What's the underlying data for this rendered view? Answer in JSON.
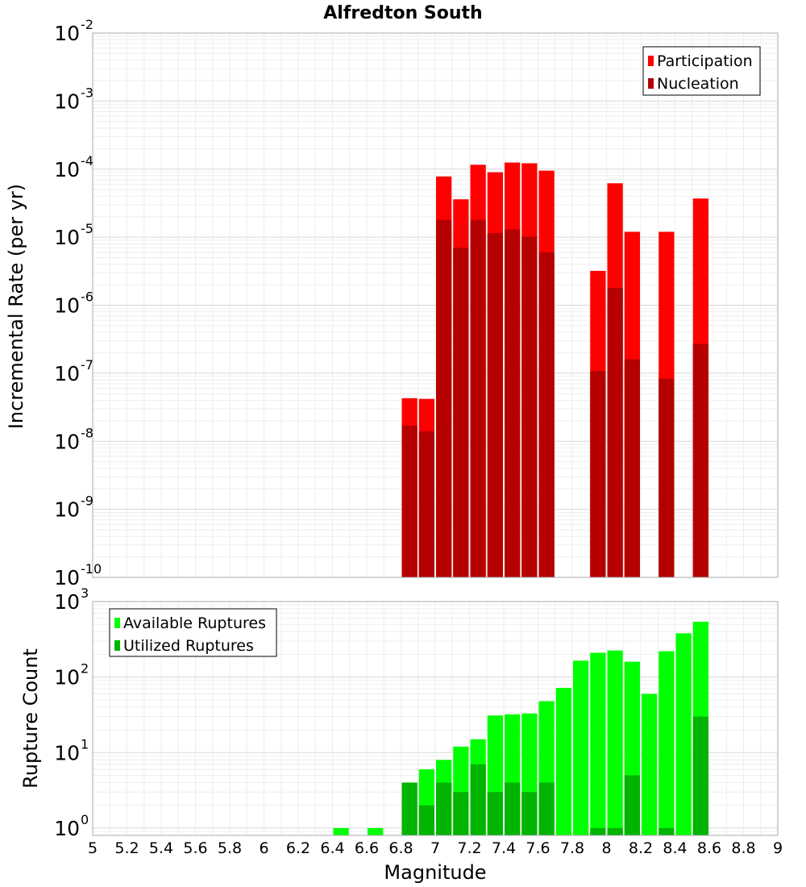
{
  "chart_data": [
    {
      "type": "bar",
      "title": "Alfredton South",
      "ylabel": "Incremental Rate (per yr)",
      "yscale": "log",
      "ylim": [
        1e-10,
        0.01
      ],
      "xlim": [
        5,
        9
      ],
      "x_ticks": [
        "5",
        "5.2",
        "5.4",
        "5.6",
        "5.8",
        "6",
        "6.2",
        "6.4",
        "6.6",
        "6.8",
        "7",
        "7.2",
        "7.4",
        "7.6",
        "7.8",
        "8",
        "8.2",
        "8.4",
        "8.6",
        "8.8",
        "9"
      ],
      "y_ticks": [
        {
          "base": "10",
          "exp": "-10"
        },
        {
          "base": "10",
          "exp": "-9"
        },
        {
          "base": "10",
          "exp": "-8"
        },
        {
          "base": "10",
          "exp": "-7"
        },
        {
          "base": "10",
          "exp": "-6"
        },
        {
          "base": "10",
          "exp": "-5"
        },
        {
          "base": "10",
          "exp": "-4"
        },
        {
          "base": "10",
          "exp": "-3"
        },
        {
          "base": "10",
          "exp": "-2"
        }
      ],
      "grid": true,
      "legend_position": "top-right",
      "series": [
        {
          "name": "Participation",
          "color": "#ff0000",
          "x": [
            6.85,
            6.95,
            7.05,
            7.15,
            7.25,
            7.35,
            7.45,
            7.55,
            7.65,
            7.95,
            8.05,
            8.15,
            8.35,
            8.55
          ],
          "values": [
            4.3e-08,
            4.2e-08,
            7.8e-05,
            3.6e-05,
            0.000116,
            9e-05,
            0.000125,
            0.000122,
            9.5e-05,
            3.2e-06,
            6.2e-05,
            1.2e-05,
            1.2e-05,
            3.7e-05
          ]
        },
        {
          "name": "Nucleation",
          "color": "#b40000",
          "x": [
            6.85,
            6.95,
            7.05,
            7.15,
            7.25,
            7.35,
            7.45,
            7.55,
            7.65,
            7.95,
            8.05,
            8.15,
            8.35,
            8.55
          ],
          "values": [
            1.7e-08,
            1.4e-08,
            1.8e-05,
            7e-06,
            1.8e-05,
            1.15e-05,
            1.3e-05,
            1.02e-05,
            6e-06,
            1.08e-07,
            1.8e-06,
            1.6e-07,
            8.3e-08,
            2.7e-07
          ]
        }
      ]
    },
    {
      "type": "bar",
      "xlabel": "Magnitude",
      "ylabel": "Rupture Count",
      "yscale": "log",
      "ylim": [
        0.8,
        1000
      ],
      "xlim": [
        5,
        9
      ],
      "y_ticks": [
        {
          "base": "10",
          "exp": "0",
          "value": 1
        },
        {
          "base": "10",
          "exp": "1",
          "value": 10
        },
        {
          "base": "10",
          "exp": "2",
          "value": 100
        },
        {
          "base": "10",
          "exp": "3",
          "value": 1000
        }
      ],
      "grid": true,
      "legend_position": "top-left",
      "series": [
        {
          "name": "Available Ruptures",
          "color": "#00ff00",
          "x": [
            6.45,
            6.65,
            6.85,
            6.95,
            7.05,
            7.15,
            7.25,
            7.35,
            7.45,
            7.55,
            7.65,
            7.75,
            7.85,
            7.95,
            8.05,
            8.15,
            8.25,
            8.35,
            8.45,
            8.55
          ],
          "values": [
            1,
            1,
            4,
            6,
            8,
            12,
            15,
            31,
            32,
            33,
            48,
            72,
            165,
            210,
            225,
            160,
            60,
            220,
            380,
            540
          ]
        },
        {
          "name": "Utilized Ruptures",
          "color": "#00b400",
          "x": [
            6.85,
            6.95,
            7.05,
            7.15,
            7.25,
            7.35,
            7.45,
            7.55,
            7.65,
            7.95,
            8.05,
            8.15,
            8.35,
            8.55
          ],
          "values": [
            4,
            2,
            4,
            3,
            7,
            3,
            4,
            3,
            4,
            1,
            1,
            5,
            1,
            30
          ]
        }
      ]
    }
  ]
}
